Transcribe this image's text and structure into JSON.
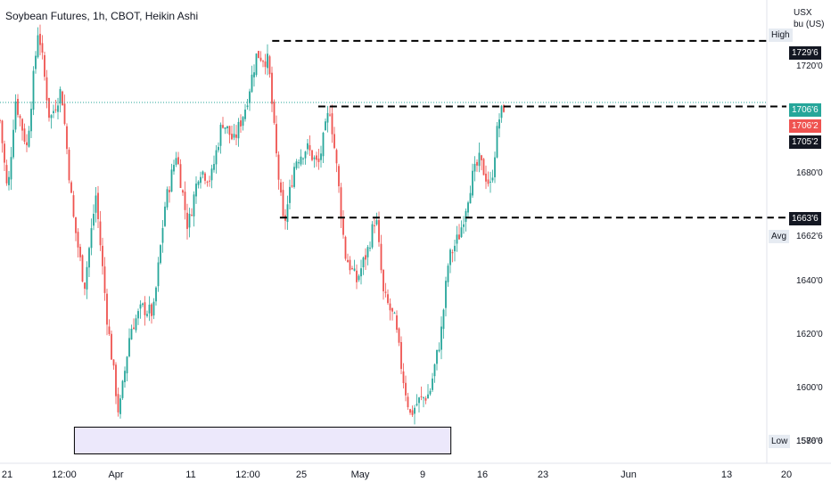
{
  "title": "Soybean Futures, 1h, CBOT, Heikin Ashi",
  "unit": {
    "line1": "USX",
    "line2": "bu (US)"
  },
  "price_tags": {
    "high": {
      "label": "High",
      "value": "1729'6"
    },
    "last": "1706'6",
    "prev": "1706'2",
    "level_1705": "1705'2",
    "level_1663": "1663'6",
    "avg": {
      "label": "Avg",
      "value": "1662'6"
    },
    "low": {
      "label": "Low",
      "value": "1576'6"
    }
  },
  "colors": {
    "up": "#26a69a",
    "down": "#ef5350",
    "dash": "#000000",
    "zone_fill": "#ece8fb",
    "last_line": "#26a69a"
  },
  "chart_data": {
    "type": "candlestick",
    "title": "Soybean Futures, 1h, CBOT, Heikin Ashi",
    "ylabel": "USX bu (US)",
    "ylim": [
      1572,
      1745
    ],
    "y_ticks": [
      {
        "value": 1720,
        "label": "1720'0"
      },
      {
        "value": 1680,
        "label": "1680'0"
      },
      {
        "value": 1640,
        "label": "1640'0"
      },
      {
        "value": 1620,
        "label": "1620'0"
      },
      {
        "value": 1600,
        "label": "1600'0"
      },
      {
        "value": 1580,
        "label": "1580'0"
      }
    ],
    "x_ticks": [
      "21",
      "12:00",
      "Apr",
      "11",
      "12:00",
      "25",
      "May",
      "9",
      "16",
      "23",
      "Jun",
      "13",
      "20"
    ],
    "horizontal_levels": [
      {
        "name": "high",
        "value": 1729.75,
        "from": 0.355,
        "to": 1.0
      },
      {
        "name": "resistance",
        "value": 1705.25,
        "from": 0.415,
        "to": 1.0
      },
      {
        "name": "support",
        "value": 1663.75,
        "from": 0.365,
        "to": 1.0
      }
    ],
    "zone": {
      "from": 0.097,
      "to": 0.588,
      "low": 1575.5,
      "high": 1585.5
    },
    "last_price": 1706.75,
    "path": [
      [
        0.0,
        1700
      ],
      [
        0.01,
        1672
      ],
      [
        0.02,
        1708
      ],
      [
        0.035,
        1690
      ],
      [
        0.05,
        1735
      ],
      [
        0.065,
        1700
      ],
      [
        0.08,
        1712
      ],
      [
        0.095,
        1665
      ],
      [
        0.11,
        1638
      ],
      [
        0.125,
        1672
      ],
      [
        0.14,
        1625
      ],
      [
        0.155,
        1590
      ],
      [
        0.17,
        1622
      ],
      [
        0.185,
        1630
      ],
      [
        0.2,
        1628
      ],
      [
        0.215,
        1668
      ],
      [
        0.23,
        1688
      ],
      [
        0.245,
        1660
      ],
      [
        0.26,
        1682
      ],
      [
        0.275,
        1678
      ],
      [
        0.29,
        1700
      ],
      [
        0.305,
        1692
      ],
      [
        0.32,
        1705
      ],
      [
        0.335,
        1725
      ],
      [
        0.35,
        1722
      ],
      [
        0.36,
        1688
      ],
      [
        0.37,
        1660
      ],
      [
        0.385,
        1685
      ],
      [
        0.4,
        1690
      ],
      [
        0.415,
        1683
      ],
      [
        0.43,
        1705
      ],
      [
        0.44,
        1680
      ],
      [
        0.45,
        1650
      ],
      [
        0.465,
        1640
      ],
      [
        0.48,
        1652
      ],
      [
        0.49,
        1665
      ],
      [
        0.5,
        1635
      ],
      [
        0.515,
        1625
      ],
      [
        0.525,
        1605
      ],
      [
        0.535,
        1590
      ],
      [
        0.545,
        1595
      ],
      [
        0.56,
        1598
      ],
      [
        0.575,
        1620
      ],
      [
        0.585,
        1648
      ],
      [
        0.6,
        1658
      ],
      [
        0.615,
        1678
      ],
      [
        0.625,
        1685
      ],
      [
        0.64,
        1675
      ],
      [
        0.65,
        1700
      ],
      [
        0.658,
        1706
      ]
    ]
  }
}
